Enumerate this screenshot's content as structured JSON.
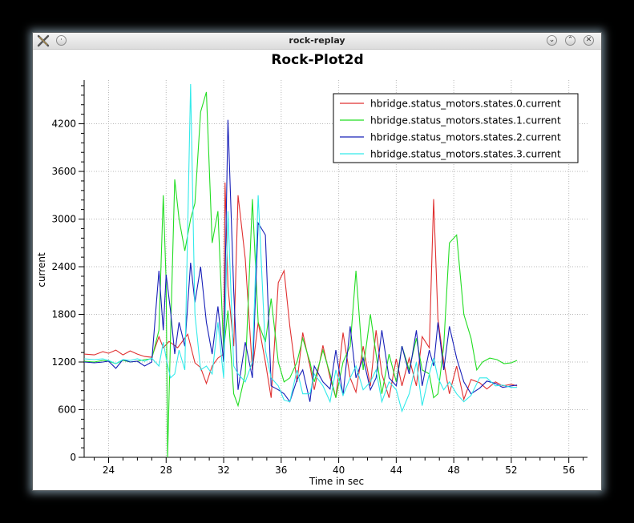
{
  "window": {
    "title": "rock-replay",
    "icon": "x-app-icon",
    "buttons": {
      "menu": "window-menu-icon",
      "minimize": "minimize-icon",
      "maximize": "maximize-icon",
      "close": "close-icon"
    }
  },
  "chart_data": {
    "type": "line",
    "title": "Rock-Plot2d",
    "xlabel": "Time in sec",
    "ylabel": "current",
    "xlim": [
      22.3,
      57.3
    ],
    "ylim": [
      0,
      4750
    ],
    "xticks": [
      24,
      28,
      32,
      36,
      40,
      44,
      48,
      52,
      56
    ],
    "yticks": [
      0,
      600,
      1200,
      1800,
      2400,
      3000,
      3600,
      4200
    ],
    "grid": true,
    "legend_position": "top-right",
    "series": [
      {
        "name": "hbridge.status_motors.states.0.current",
        "color": "#e03030",
        "x": [
          22.3,
          23,
          23.6,
          24,
          24.5,
          25,
          25.5,
          26,
          26.5,
          27,
          27.5,
          27.8,
          28.2,
          28.8,
          29.5,
          30,
          30.4,
          30.8,
          31.2,
          31.6,
          32,
          32.1,
          32.3,
          32.7,
          33,
          33.5,
          34,
          34.4,
          34.9,
          35.3,
          35.8,
          36.2,
          36.6,
          37.1,
          37.5,
          38,
          38.3,
          38.9,
          39.4,
          39.8,
          40.3,
          40.8,
          41.2,
          41.7,
          42.2,
          42.6,
          43,
          43.5,
          44,
          44.4,
          44.9,
          45.4,
          45.8,
          46.3,
          46.6,
          46.9,
          47.3,
          47.7,
          48.2,
          48.7,
          49.2,
          49.8,
          50.3,
          50.9,
          51.4,
          52,
          52.4
        ],
        "y": [
          1300,
          1290,
          1330,
          1310,
          1350,
          1290,
          1340,
          1300,
          1270,
          1260,
          1520,
          1380,
          1460,
          1380,
          1550,
          1190,
          1130,
          930,
          1150,
          1250,
          1300,
          3460,
          2150,
          1400,
          3300,
          2500,
          1100,
          1700,
          1200,
          750,
          2200,
          2350,
          1650,
          950,
          1570,
          1150,
          850,
          1410,
          1000,
          750,
          1570,
          1000,
          820,
          1400,
          900,
          1600,
          1050,
          750,
          1240,
          900,
          1250,
          900,
          1520,
          1380,
          3250,
          1740,
          1200,
          800,
          1150,
          730,
          980,
          940,
          860,
          950,
          900,
          920,
          900
        ]
      },
      {
        "name": "hbridge.status_motors.states.1.current",
        "color": "#22dd22",
        "x": [
          22.3,
          23,
          23.6,
          24,
          24.5,
          25,
          25.5,
          26,
          26.5,
          27,
          27.5,
          27.8,
          28,
          28.1,
          28.3,
          28.6,
          28.9,
          29.3,
          29.7,
          30,
          30.4,
          30.8,
          31.2,
          31.6,
          32,
          32.3,
          32.7,
          33,
          33.5,
          34,
          34.4,
          34.9,
          35.3,
          35.8,
          36.2,
          36.6,
          37.1,
          37.5,
          38,
          38.3,
          38.9,
          39.4,
          39.8,
          40.3,
          40.8,
          41.2,
          41.7,
          42.2,
          42.6,
          43,
          43.5,
          44,
          44.4,
          44.9,
          45.4,
          45.8,
          46.3,
          46.6,
          46.9,
          47.3,
          47.7,
          48.2,
          48.7,
          49.2,
          49.6,
          50,
          50.5,
          51,
          51.5,
          52,
          52.4
        ],
        "y": [
          1210,
          1200,
          1220,
          1210,
          1180,
          1220,
          1200,
          1210,
          1230,
          1240,
          1600,
          3300,
          2200,
          0,
          1500,
          3500,
          3000,
          2600,
          3000,
          3200,
          4350,
          4600,
          2700,
          3100,
          1350,
          1850,
          800,
          650,
          1050,
          3250,
          1700,
          1450,
          2000,
          1200,
          950,
          1000,
          1200,
          1500,
          1200,
          950,
          1350,
          1050,
          750,
          1200,
          1400,
          2350,
          1100,
          1800,
          1300,
          800,
          1300,
          950,
          1400,
          1100,
          1500,
          1100,
          1050,
          750,
          800,
          1400,
          2700,
          2800,
          1800,
          1500,
          1100,
          1200,
          1250,
          1230,
          1180,
          1190,
          1220
        ]
      },
      {
        "name": "hbridge.status_motors.states.2.current",
        "color": "#1820b8",
        "x": [
          22.3,
          23,
          23.6,
          24,
          24.5,
          25,
          25.5,
          26,
          26.5,
          27,
          27.5,
          27.8,
          28,
          28.3,
          28.6,
          28.9,
          29.3,
          29.7,
          30,
          30.4,
          30.8,
          31.2,
          31.6,
          32,
          32.3,
          32.7,
          33,
          33.5,
          34,
          34.4,
          34.9,
          35.3,
          35.8,
          36.2,
          36.6,
          37.1,
          37.5,
          38,
          38.3,
          38.9,
          39.4,
          39.8,
          40.3,
          40.8,
          41.2,
          41.7,
          42.2,
          42.6,
          43,
          43.5,
          44,
          44.4,
          44.9,
          45.4,
          45.8,
          46.3,
          46.6,
          46.9,
          47.3,
          47.7,
          48.2,
          48.7,
          49.2,
          49.8,
          50.3,
          50.9,
          51.4,
          52,
          52.4
        ],
        "y": [
          1200,
          1190,
          1200,
          1210,
          1120,
          1230,
          1200,
          1210,
          1150,
          1200,
          2350,
          1600,
          2300,
          1850,
          1300,
          1700,
          1400,
          2450,
          1950,
          2400,
          1700,
          1300,
          1900,
          1200,
          4250,
          2100,
          850,
          1450,
          1000,
          2950,
          2800,
          900,
          850,
          800,
          700,
          980,
          1100,
          700,
          1150,
          950,
          860,
          1350,
          780,
          1650,
          1000,
          1250,
          850,
          1000,
          1600,
          1000,
          900,
          1400,
          1050,
          1600,
          900,
          1350,
          1150,
          1700,
          1100,
          1650,
          1250,
          950,
          800,
          870,
          960,
          930,
          880,
          900,
          910
        ]
      },
      {
        "name": "hbridge.status_motors.states.3.current",
        "color": "#33eaea",
        "x": [
          22.3,
          23,
          23.6,
          24,
          24.5,
          25,
          25.5,
          26,
          26.5,
          27,
          27.5,
          27.8,
          28,
          28.3,
          28.6,
          28.9,
          29.3,
          29.7,
          30,
          30.4,
          30.8,
          31.2,
          31.6,
          32,
          32.3,
          32.7,
          33,
          33.5,
          34,
          34.4,
          34.9,
          35.3,
          35.8,
          36.2,
          36.6,
          37.1,
          37.5,
          38,
          38.3,
          38.9,
          39.4,
          39.8,
          40.3,
          40.8,
          41.2,
          41.7,
          42.2,
          42.6,
          43,
          43.5,
          44,
          44.4,
          44.9,
          45.4,
          45.8,
          46.3,
          46.6,
          46.9,
          47.3,
          47.7,
          48.2,
          48.7,
          49.2,
          49.8,
          50.3,
          50.9,
          51.4,
          52,
          52.4
        ],
        "y": [
          1240,
          1230,
          1240,
          1220,
          1180,
          1230,
          1220,
          1240,
          1210,
          1250,
          1150,
          1450,
          1250,
          1000,
          1050,
          1350,
          1100,
          4700,
          1800,
          1100,
          1150,
          1050,
          1700,
          1000,
          3100,
          1150,
          1050,
          950,
          1200,
          3300,
          1350,
          1000,
          900,
          720,
          700,
          1100,
          800,
          800,
          1050,
          900,
          700,
          1100,
          780,
          1000,
          1150,
          850,
          950,
          1100,
          700,
          950,
          850,
          580,
          800,
          1200,
          650,
          1050,
          1250,
          1000,
          850,
          950,
          800,
          700,
          780,
          1000,
          1000,
          900,
          910,
          880,
          880
        ]
      }
    ]
  }
}
